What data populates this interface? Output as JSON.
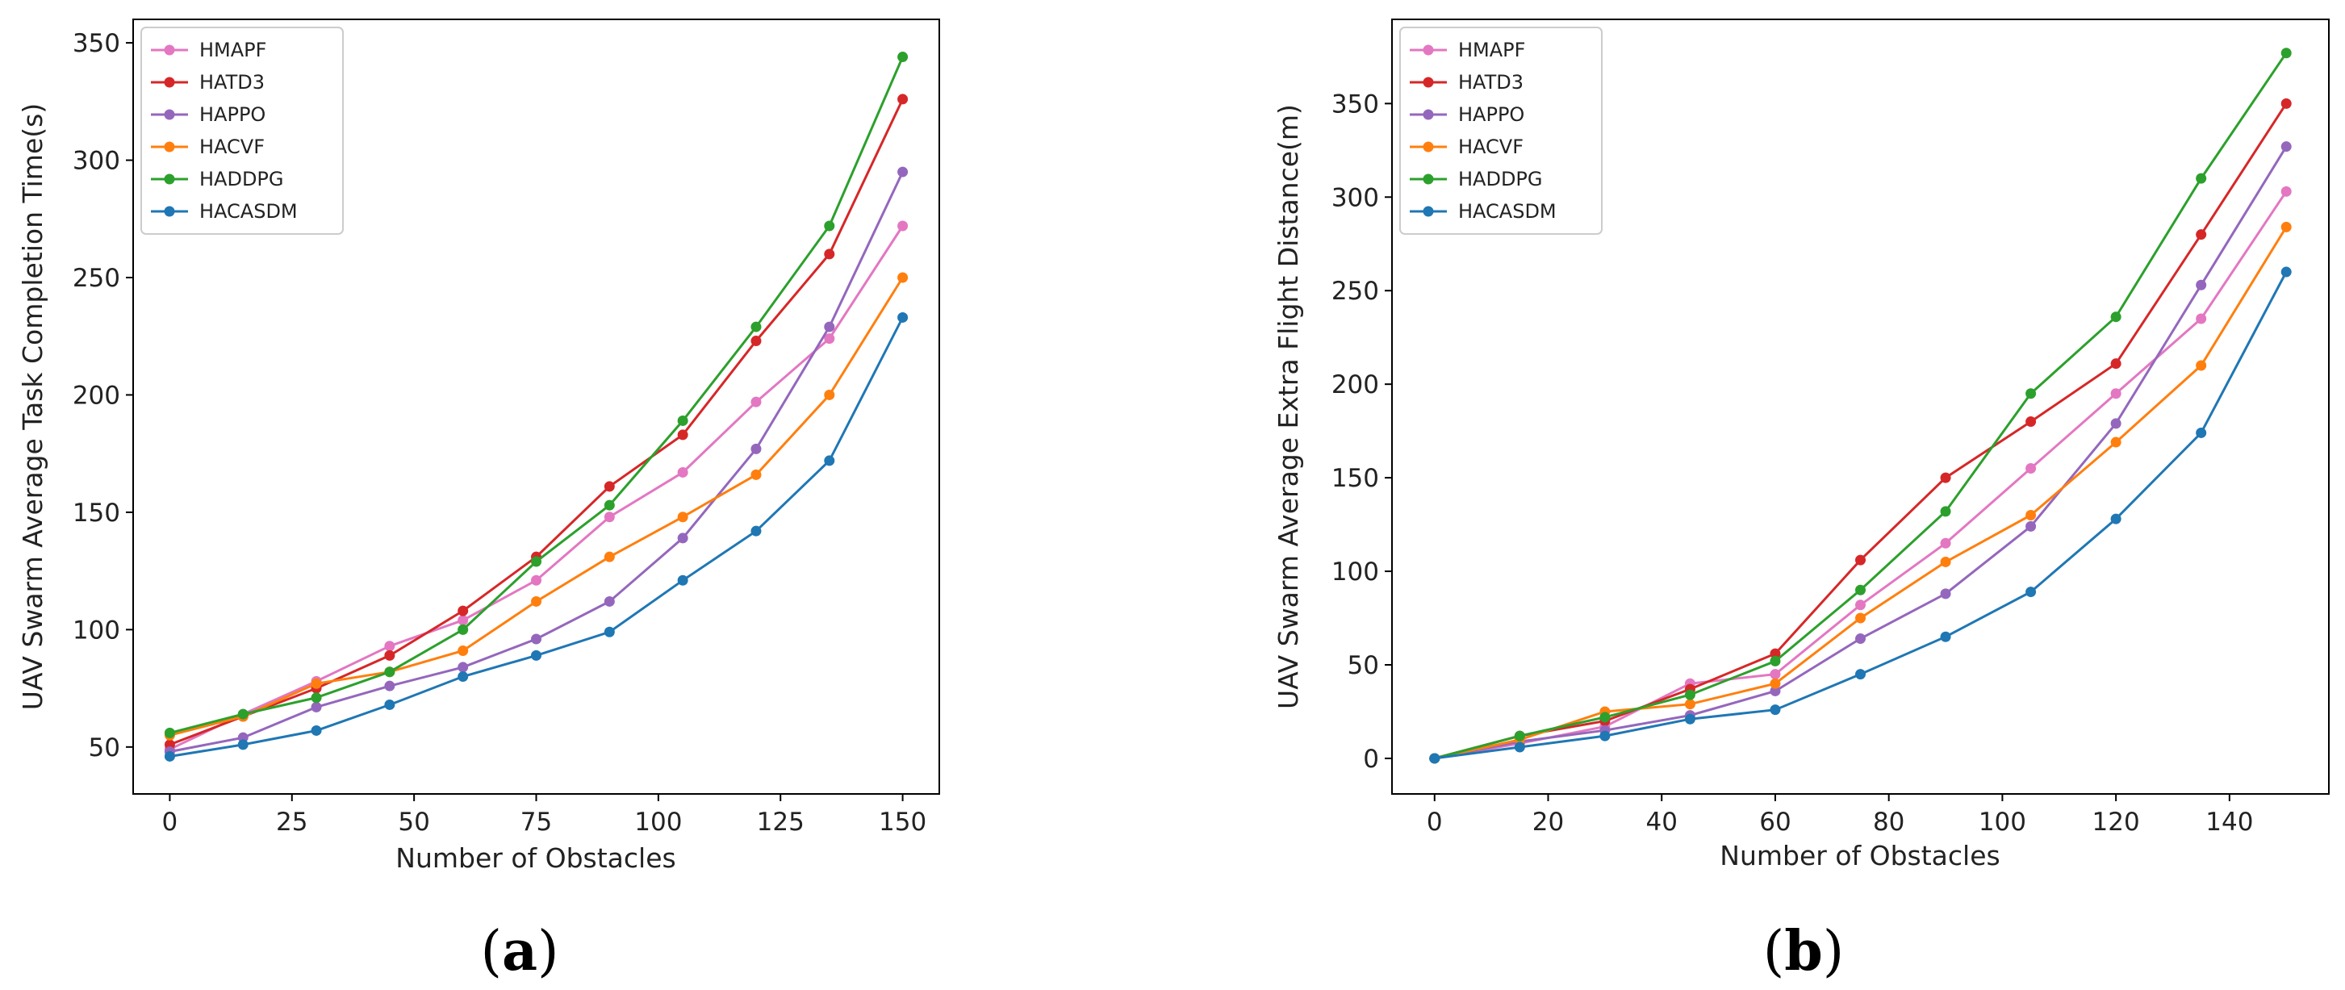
{
  "series_colors": {
    "HMAPF": "#e377c2",
    "HATD3": "#d62728",
    "HAPPO": "#9467bd",
    "HACVF": "#ff7f0e",
    "HADDPG": "#2ca02c",
    "HACASDM": "#1f77b4"
  },
  "chart_data": [
    {
      "type": "line",
      "panel": "a",
      "xlabel": "Number of Obstacles",
      "ylabel": "UAV Swarm Average Task Completion Time(s)",
      "xlim": [
        -7.5,
        157.5
      ],
      "ylim": [
        30,
        360
      ],
      "xticks": [
        0,
        25,
        50,
        75,
        100,
        125,
        150
      ],
      "yticks": [
        50,
        100,
        150,
        200,
        250,
        300,
        350
      ],
      "x": [
        0,
        15,
        30,
        45,
        60,
        75,
        90,
        105,
        120,
        135,
        150
      ],
      "legend_position": "upper-left",
      "series": [
        {
          "name": "HMAPF",
          "values": [
            49,
            64,
            78,
            93,
            104,
            121,
            148,
            167,
            197,
            224,
            272
          ]
        },
        {
          "name": "HATD3",
          "values": [
            51,
            63,
            75,
            89,
            108,
            131,
            161,
            183,
            223,
            260,
            326
          ]
        },
        {
          "name": "HAPPO",
          "values": [
            48,
            54,
            67,
            76,
            84,
            96,
            112,
            139,
            177,
            229,
            295
          ]
        },
        {
          "name": "HACVF",
          "values": [
            55,
            63,
            77,
            82,
            91,
            112,
            131,
            148,
            166,
            200,
            250
          ]
        },
        {
          "name": "HADDPG",
          "values": [
            56,
            64,
            71,
            82,
            100,
            129,
            153,
            189,
            229,
            272,
            344
          ]
        },
        {
          "name": "HACASDM",
          "values": [
            46,
            51,
            57,
            68,
            80,
            89,
            99,
            121,
            142,
            172,
            233
          ]
        }
      ]
    },
    {
      "type": "line",
      "panel": "b",
      "xlabel": "Number of Obstacles",
      "ylabel": "UAV Swarm Average Extra Flight Distance(m)",
      "xlim": [
        -7.5,
        157.5
      ],
      "ylim": [
        -19,
        395
      ],
      "xticks": [
        0,
        20,
        40,
        60,
        80,
        100,
        120,
        140
      ],
      "yticks": [
        0,
        50,
        100,
        150,
        200,
        250,
        300,
        350
      ],
      "x": [
        0,
        15,
        30,
        45,
        60,
        75,
        90,
        105,
        120,
        135,
        150
      ],
      "legend_position": "upper-left",
      "series": [
        {
          "name": "HMAPF",
          "values": [
            0,
            8,
            17,
            40,
            45,
            82,
            115,
            155,
            195,
            235,
            303
          ]
        },
        {
          "name": "HATD3",
          "values": [
            0,
            12,
            20,
            37,
            56,
            106,
            150,
            180,
            211,
            280,
            350
          ]
        },
        {
          "name": "HAPPO",
          "values": [
            0,
            9,
            15,
            23,
            36,
            64,
            88,
            124,
            179,
            253,
            327
          ]
        },
        {
          "name": "HACVF",
          "values": [
            0,
            10,
            25,
            29,
            40,
            75,
            105,
            130,
            169,
            210,
            284
          ]
        },
        {
          "name": "HADDPG",
          "values": [
            0,
            12,
            22,
            34,
            52,
            90,
            132,
            195,
            236,
            310,
            377
          ]
        },
        {
          "name": "HACASDM",
          "values": [
            0,
            6,
            12,
            21,
            26,
            45,
            65,
            89,
            128,
            174,
            260
          ]
        }
      ]
    }
  ],
  "panel_labels": {
    "a_open": "(",
    "a_letter": "a",
    "a_close": ")",
    "b_open": "(",
    "b_letter": "b",
    "b_close": ")"
  }
}
